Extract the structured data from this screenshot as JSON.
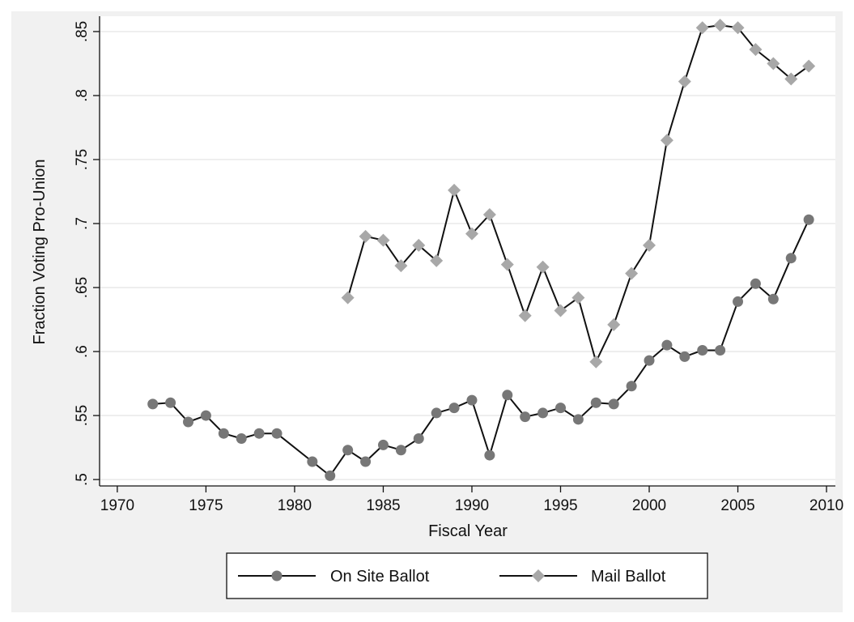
{
  "chart_data": {
    "type": "line",
    "title": "",
    "xlabel": "Fiscal Year",
    "ylabel": "Fraction Voting Pro-Union",
    "xlim": [
      1969,
      2010.5
    ],
    "ylim": [
      0.495,
      0.862
    ],
    "x_ticks": [
      1970,
      1975,
      1980,
      1985,
      1990,
      1995,
      2000,
      2005,
      2010
    ],
    "x_tick_labels": [
      "1970",
      "1975",
      "1980",
      "1985",
      "1990",
      "1995",
      "2000",
      "2005",
      "2010"
    ],
    "y_ticks": [
      0.5,
      0.55,
      0.6,
      0.65,
      0.7,
      0.75,
      0.8,
      0.85
    ],
    "y_tick_labels": [
      ".5",
      ".55",
      ".6",
      ".65",
      ".7",
      ".75",
      ".8",
      ".85"
    ],
    "grid": "horizontal",
    "legend_position": "bottom",
    "series": [
      {
        "name": "On Site Ballot",
        "marker": "circle",
        "color": "#777777",
        "line_color": "#111111",
        "points": [
          [
            1972,
            0.559
          ],
          [
            1973,
            0.56
          ],
          [
            1974,
            0.545
          ],
          [
            1975,
            0.55
          ],
          [
            1976,
            0.536
          ],
          [
            1977,
            0.532
          ],
          [
            1978,
            0.536
          ],
          [
            1979,
            0.536
          ],
          [
            1981,
            0.514
          ],
          [
            1982,
            0.503
          ],
          [
            1983,
            0.523
          ],
          [
            1984,
            0.514
          ],
          [
            1985,
            0.527
          ],
          [
            1986,
            0.523
          ],
          [
            1987,
            0.532
          ],
          [
            1988,
            0.552
          ],
          [
            1989,
            0.556
          ],
          [
            1990,
            0.562
          ],
          [
            1991,
            0.519
          ],
          [
            1992,
            0.566
          ],
          [
            1993,
            0.549
          ],
          [
            1994,
            0.552
          ],
          [
            1995,
            0.556
          ],
          [
            1996,
            0.547
          ],
          [
            1997,
            0.56
          ],
          [
            1998,
            0.559
          ],
          [
            1999,
            0.573
          ],
          [
            2000,
            0.593
          ],
          [
            2001,
            0.605
          ],
          [
            2002,
            0.596
          ],
          [
            2003,
            0.601
          ],
          [
            2004,
            0.601
          ],
          [
            2005,
            0.639
          ],
          [
            2006,
            0.653
          ],
          [
            2007,
            0.641
          ],
          [
            2008,
            0.673
          ],
          [
            2009,
            0.703
          ]
        ]
      },
      {
        "name": "Mail Ballot",
        "marker": "diamond",
        "color": "#a8a8a8",
        "line_color": "#111111",
        "points": [
          [
            1983,
            0.642
          ],
          [
            1984,
            0.69
          ],
          [
            1985,
            0.687
          ],
          [
            1986,
            0.667
          ],
          [
            1987,
            0.683
          ],
          [
            1988,
            0.671
          ],
          [
            1989,
            0.726
          ],
          [
            1990,
            0.692
          ],
          [
            1991,
            0.707
          ],
          [
            1992,
            0.668
          ],
          [
            1993,
            0.628
          ],
          [
            1994,
            0.666
          ],
          [
            1995,
            0.632
          ],
          [
            1996,
            0.642
          ],
          [
            1997,
            0.592
          ],
          [
            1998,
            0.621
          ],
          [
            1999,
            0.661
          ],
          [
            2000,
            0.683
          ],
          [
            2001,
            0.765
          ],
          [
            2002,
            0.811
          ],
          [
            2003,
            0.853
          ],
          [
            2004,
            0.855
          ],
          [
            2005,
            0.853
          ],
          [
            2006,
            0.836
          ],
          [
            2007,
            0.825
          ],
          [
            2008,
            0.813
          ],
          [
            2009,
            0.823
          ]
        ]
      }
    ]
  },
  "colors": {
    "outer_background": "#f1f1f1",
    "plot_background": "#ffffff",
    "grid": "#e5e5e5",
    "axis": "#111111"
  }
}
